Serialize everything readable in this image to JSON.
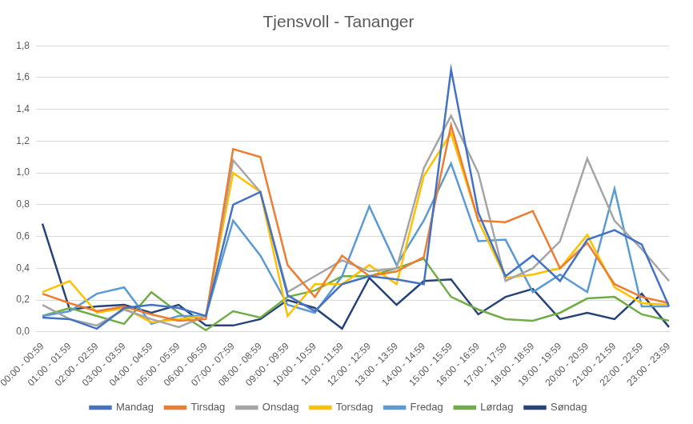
{
  "chart_data": {
    "type": "line",
    "title": "Tjensvoll - Tananger",
    "categories": [
      "00:00 - 00:59",
      "01:00 - 01:59",
      "02:00 - 02:59",
      "03:00 - 03:59",
      "04:00 - 04:59",
      "05:00 - 05:59",
      "06:00 - 06:59",
      "07:00 - 07:59",
      "08:00 - 08:59",
      "09:00 - 09:59",
      "10:00 - 10:59",
      "11:00 - 11:59",
      "12:00 - 12:59",
      "13:00 - 13:59",
      "14:00 - 14:59",
      "15:00 - 15:59",
      "16:00 - 16:59",
      "17:00 - 17:59",
      "18:00 - 18:59",
      "19:00 - 19:59",
      "20:00 - 20:59",
      "21:00 - 21:59",
      "22:00 - 22:59",
      "23:00 - 23:59"
    ],
    "series": [
      {
        "name": "Mandag",
        "color": "#4472c4",
        "values": [
          0.09,
          0.08,
          0.02,
          0.15,
          0.17,
          0.15,
          0.1,
          0.8,
          0.88,
          0.23,
          0.13,
          0.3,
          0.35,
          0.33,
          0.3,
          1.65,
          0.75,
          0.35,
          0.48,
          0.32,
          0.58,
          0.64,
          0.55,
          0.16
        ]
      },
      {
        "name": "Tirsdag",
        "color": "#ed7d31",
        "values": [
          0.24,
          0.18,
          0.13,
          0.16,
          0.11,
          0.07,
          0.08,
          1.15,
          1.1,
          0.42,
          0.22,
          0.48,
          0.35,
          0.38,
          0.47,
          1.3,
          0.7,
          0.69,
          0.76,
          0.4,
          0.56,
          0.3,
          0.22,
          0.18
        ]
      },
      {
        "name": "Onsdag",
        "color": "#a5a5a5",
        "values": [
          0.17,
          0.08,
          0.04,
          0.14,
          0.08,
          0.03,
          0.1,
          1.08,
          0.88,
          0.25,
          0.35,
          0.45,
          0.38,
          0.4,
          1.03,
          1.36,
          1.0,
          0.32,
          0.4,
          0.57,
          1.09,
          0.7,
          0.52,
          0.32
        ]
      },
      {
        "name": "Torsdag",
        "color": "#ffc000",
        "values": [
          0.25,
          0.32,
          0.12,
          0.15,
          0.06,
          0.08,
          0.1,
          1.0,
          0.88,
          0.1,
          0.3,
          0.3,
          0.42,
          0.3,
          0.98,
          1.25,
          0.7,
          0.34,
          0.36,
          0.4,
          0.61,
          0.28,
          0.18,
          0.17
        ]
      },
      {
        "name": "Fredag",
        "color": "#5b9bd5",
        "values": [
          0.1,
          0.13,
          0.24,
          0.28,
          0.05,
          0.1,
          0.1,
          0.7,
          0.48,
          0.17,
          0.12,
          0.35,
          0.79,
          0.42,
          0.7,
          1.06,
          0.57,
          0.58,
          0.25,
          0.36,
          0.25,
          0.9,
          0.16,
          0.16
        ]
      },
      {
        "name": "Lørdag",
        "color": "#70ad47",
        "values": [
          0.1,
          0.15,
          0.1,
          0.05,
          0.25,
          0.12,
          0.01,
          0.13,
          0.09,
          0.22,
          0.26,
          0.35,
          0.35,
          0.4,
          0.46,
          0.22,
          0.14,
          0.08,
          0.07,
          0.12,
          0.21,
          0.22,
          0.11,
          0.07
        ]
      },
      {
        "name": "Søndag",
        "color": "#264478",
        "values": [
          0.68,
          0.14,
          0.16,
          0.17,
          0.12,
          0.17,
          0.04,
          0.04,
          0.08,
          0.2,
          0.15,
          0.02,
          0.34,
          0.17,
          0.32,
          0.33,
          0.11,
          0.22,
          0.27,
          0.08,
          0.12,
          0.08,
          0.24,
          0.03
        ]
      }
    ],
    "ylim": [
      0,
      1.8
    ],
    "yticks": [
      {
        "value": 0,
        "label": "0,0"
      },
      {
        "value": 0.2,
        "label": "0,2"
      },
      {
        "value": 0.4,
        "label": "0,4"
      },
      {
        "value": 0.6,
        "label": "0,6"
      },
      {
        "value": 0.8,
        "label": "0,8"
      },
      {
        "value": 1.0,
        "label": "1,0"
      },
      {
        "value": 1.2,
        "label": "1,2"
      },
      {
        "value": 1.4,
        "label": "1,4"
      },
      {
        "value": 1.6,
        "label": "1,6"
      },
      {
        "value": 1.8,
        "label": "1,8"
      }
    ],
    "grid": true,
    "legend": "bottom"
  }
}
